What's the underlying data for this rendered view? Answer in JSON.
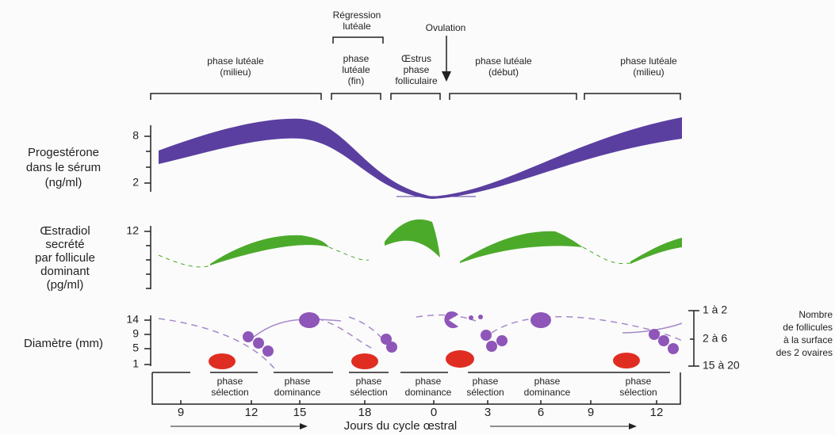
{
  "top": {
    "regression": [
      "Régression",
      "lutéale"
    ],
    "ovulation": "Ovulation",
    "phases": [
      [
        "phase lutéale",
        "(milieu)"
      ],
      [
        "phase",
        "lutéale",
        "(fin)"
      ],
      [
        "Œstrus",
        "phase",
        "folliculaire"
      ],
      [
        "phase lutéale",
        "(début)"
      ],
      [
        "phase lutéale",
        "(milieu)"
      ]
    ]
  },
  "progesterone": {
    "label": [
      "Progestérone",
      "dans le sérum",
      "(ng/ml)"
    ],
    "ticks": [
      "8",
      "2"
    ]
  },
  "estradiol": {
    "label": [
      "Œstradiol",
      "secrété",
      "par follicule",
      "dominant",
      "(pg/ml)"
    ],
    "ticks": [
      "12"
    ]
  },
  "diameter": {
    "label": "Diamètre (mm)",
    "ticks": [
      "14",
      "9",
      "5",
      "1"
    ]
  },
  "follicles": {
    "ticks": [
      "1 à 2",
      "2 à 6",
      "15 à 20"
    ],
    "label": [
      "Nombre",
      "de follicules",
      "à la surface",
      "des 2 ovaires"
    ]
  },
  "bottom_phases": [
    [
      "phase",
      "sélection"
    ],
    [
      "phase",
      "dominance"
    ],
    [
      "phase",
      "sélection"
    ],
    [
      "phase",
      "dominance"
    ],
    [
      "phase",
      "sélection"
    ],
    [
      "phase",
      "dominance"
    ],
    [
      "phase",
      "sélection"
    ]
  ],
  "days": [
    "9",
    "12",
    "15",
    "18",
    "0",
    "3",
    "6",
    "9",
    "12"
  ],
  "axis_label": "Jours du cycle œstral"
}
